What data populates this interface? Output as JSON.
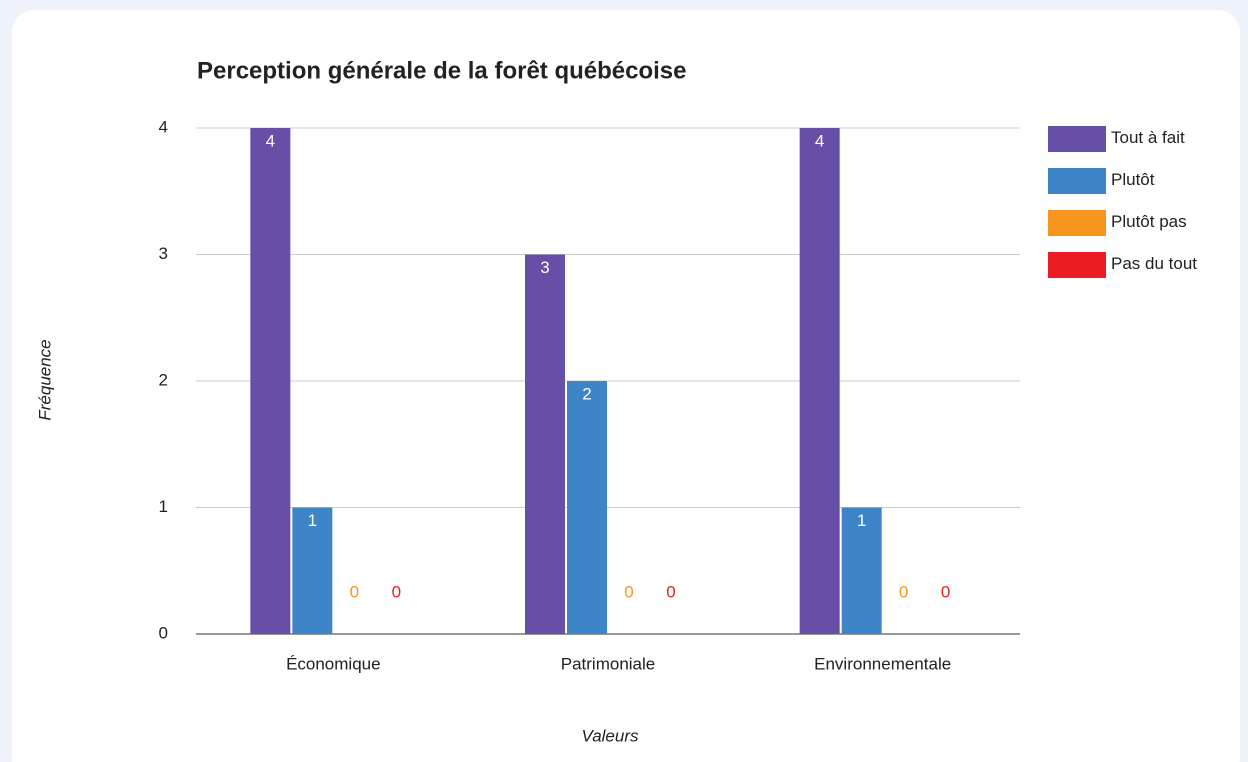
{
  "chart_data": {
    "type": "bar",
    "title": "Perception générale de la forêt québécoise",
    "x_label": "Valeurs",
    "y_label": "Fréquence",
    "categories": [
      "Économique",
      "Patrimoniale",
      "Environnementale"
    ],
    "series": [
      {
        "name": "Tout à fait",
        "color": "#674ea7",
        "values": [
          4,
          3,
          4
        ]
      },
      {
        "name": "Plutôt",
        "color": "#3d85c6",
        "values": [
          1,
          2,
          1
        ]
      },
      {
        "name": "Plutôt pas",
        "color": "#f6961e",
        "values": [
          0,
          0,
          0
        ]
      },
      {
        "name": "Pas du tout",
        "color": "#ec1c24",
        "values": [
          0,
          0,
          0
        ]
      }
    ],
    "ylim": [
      0,
      4
    ],
    "yticks": [
      0,
      1,
      2,
      3,
      4
    ],
    "grid": true,
    "legend": "right"
  }
}
